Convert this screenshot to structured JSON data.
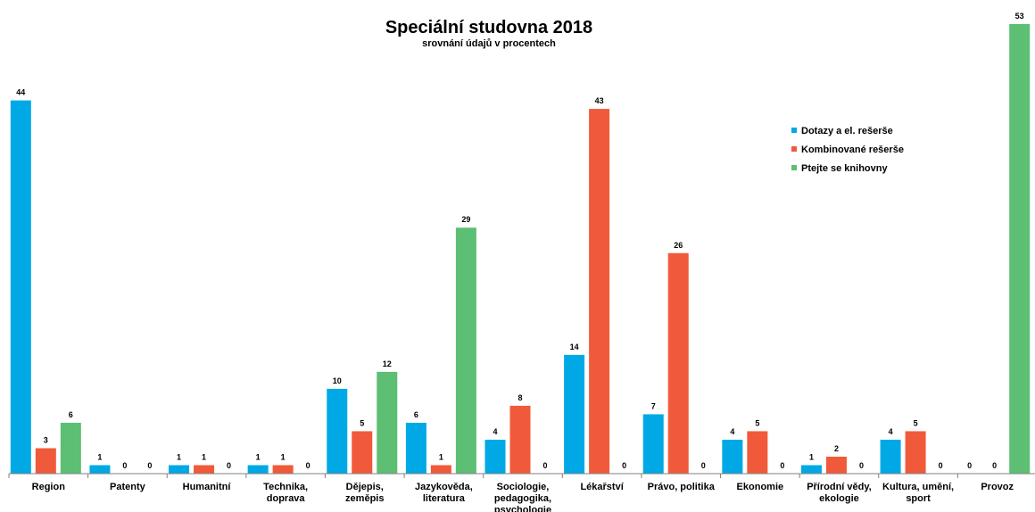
{
  "chart_data": {
    "type": "bar",
    "title": "Speciální studovna 2018",
    "subtitle": "srovnání údajů v procentech",
    "xlabel": "",
    "ylabel": "",
    "ylim": [
      0,
      53
    ],
    "grid": false,
    "legend_position": "right",
    "categories": [
      [
        "Region"
      ],
      [
        "Patenty"
      ],
      [
        "Humanitní"
      ],
      [
        "Technika,",
        "doprava"
      ],
      [
        "Dějepis,",
        "zeměpis"
      ],
      [
        "Jazykověda,",
        "literatura"
      ],
      [
        "Sociologie,",
        "pedagogika,",
        "psychologie"
      ],
      [
        "Lékařství"
      ],
      [
        "Právo, politika"
      ],
      [
        "Ekonomie"
      ],
      [
        "Přírodní vědy,",
        "ekologie"
      ],
      [
        "Kultura, umění,",
        "sport"
      ],
      [
        "Provoz"
      ]
    ],
    "series": [
      {
        "name": "Dotazy a el. rešerše",
        "color": "#00a9e6",
        "values": [
          44,
          1,
          1,
          1,
          10,
          6,
          4,
          14,
          7,
          4,
          1,
          4,
          0
        ]
      },
      {
        "name": "Kombinované rešerše",
        "color": "#f05a3a",
        "values": [
          3,
          0,
          1,
          1,
          5,
          1,
          8,
          43,
          26,
          5,
          2,
          5,
          0
        ]
      },
      {
        "name": "Ptejte se knihovny",
        "color": "#5cbf73",
        "values": [
          6,
          0,
          0,
          0,
          12,
          29,
          0,
          0,
          0,
          0,
          0,
          0,
          53
        ]
      }
    ]
  }
}
